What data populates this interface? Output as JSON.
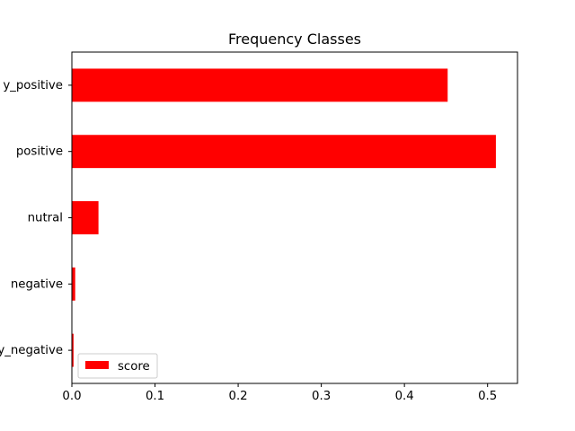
{
  "chart_data": {
    "type": "bar",
    "orientation": "horizontal",
    "title": "Frequency Classes",
    "xlabel": "",
    "ylabel": "",
    "categories": [
      "very_negative",
      "negative",
      "nutral",
      "positive",
      "very_positive"
    ],
    "categories_visible": [
      "y_negative",
      "negative",
      "nutral",
      "positive",
      "y_positive"
    ],
    "series": [
      {
        "name": "score",
        "color": "#ff0000",
        "values": [
          0.002,
          0.004,
          0.032,
          0.51,
          0.452
        ]
      }
    ],
    "xlim": [
      0,
      0.536
    ],
    "xticks": [
      0.0,
      0.1,
      0.2,
      0.3,
      0.4,
      0.5
    ],
    "xtick_labels": [
      "0.0",
      "0.1",
      "0.2",
      "0.3",
      "0.4",
      "0.5"
    ],
    "grid": false,
    "legend_position": "lower-left"
  }
}
